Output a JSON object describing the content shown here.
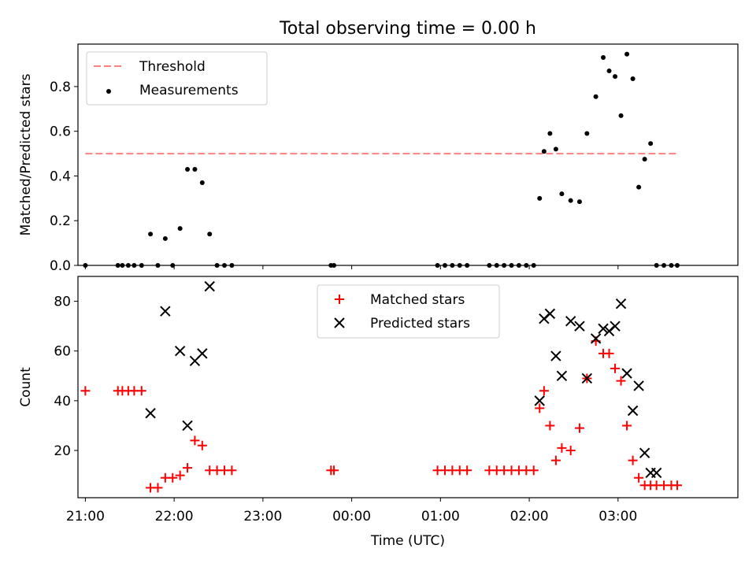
{
  "figure": {
    "title": "Total observing time = 0.00 h"
  },
  "chart_data": [
    {
      "type": "scatter",
      "panel": "top",
      "title": "Total observing time = 0.00 h",
      "xlabel": "",
      "ylabel": "Matched/Predicted stars",
      "ylim": [
        0,
        0.99
      ],
      "xlim": [
        "20:55",
        "04:21"
      ],
      "y_ticks": [
        "0.0",
        "0.2",
        "0.4",
        "0.6",
        "0.8"
      ],
      "x_ticks": [
        "21:00",
        "22:00",
        "23:00",
        "00:00",
        "01:00",
        "02:00",
        "03:00"
      ],
      "legend_position": "upper-left",
      "series": [
        {
          "name": "Threshold",
          "kind": "line",
          "style": "dashed",
          "color": "#ff8080",
          "x": [
            "21:00",
            "03:40"
          ],
          "y": [
            0.5,
            0.5
          ]
        },
        {
          "name": "Measurements",
          "kind": "scatter",
          "marker": "dot",
          "color": "#000000",
          "x": [
            "21:00",
            "21:22",
            "21:25",
            "21:29",
            "21:33",
            "21:38",
            "21:44",
            "21:49",
            "21:54",
            "21:59",
            "22:04",
            "22:09",
            "22:14",
            "22:19",
            "22:24",
            "22:29",
            "22:34",
            "22:39",
            "23:46",
            "23:48",
            "00:58",
            "01:03",
            "01:08",
            "01:13",
            "01:18",
            "01:33",
            "01:38",
            "01:43",
            "01:48",
            "01:53",
            "01:58",
            "02:03",
            "02:07",
            "02:10",
            "02:14",
            "02:18",
            "02:22",
            "02:28",
            "02:34",
            "02:39",
            "02:45",
            "02:50",
            "02:54",
            "02:58",
            "03:02",
            "03:06",
            "03:10",
            "03:14",
            "03:18",
            "03:22",
            "03:26",
            "03:31",
            "03:36",
            "03:40"
          ],
          "y": [
            0.0,
            0.0,
            0.0,
            0.0,
            0.0,
            0.0,
            0.14,
            0.0,
            0.12,
            0.0,
            0.165,
            0.43,
            0.43,
            0.37,
            0.14,
            0.0,
            0.0,
            0.0,
            0.0,
            0.0,
            0.0,
            0.0,
            0.0,
            0.0,
            0.0,
            0.0,
            0.0,
            0.0,
            0.0,
            0.0,
            0.0,
            0.0,
            0.3,
            0.51,
            0.59,
            0.52,
            0.32,
            0.29,
            0.285,
            0.59,
            0.755,
            0.93,
            0.87,
            0.845,
            0.67,
            0.945,
            0.835,
            0.35,
            0.475,
            0.545,
            0.0,
            0.0,
            0.0,
            0.0
          ]
        }
      ]
    },
    {
      "type": "scatter",
      "panel": "bottom",
      "title": "",
      "xlabel": "Time (UTC)",
      "ylabel": "Count",
      "ylim": [
        1,
        90
      ],
      "xlim": [
        "20:55",
        "04:21"
      ],
      "y_ticks": [
        "20",
        "40",
        "60",
        "80"
      ],
      "x_ticks": [
        "21:00",
        "22:00",
        "23:00",
        "00:00",
        "01:00",
        "02:00",
        "03:00"
      ],
      "legend_position": "upper-center",
      "series": [
        {
          "name": "Matched stars",
          "kind": "scatter",
          "marker": "plus",
          "color": "#ff0000",
          "x": [
            "21:00",
            "21:22",
            "21:25",
            "21:29",
            "21:33",
            "21:38",
            "21:44",
            "21:49",
            "21:54",
            "21:59",
            "22:04",
            "22:09",
            "22:14",
            "22:19",
            "22:24",
            "22:29",
            "22:34",
            "22:39",
            "23:46",
            "23:48",
            "00:58",
            "01:03",
            "01:08",
            "01:13",
            "01:18",
            "01:33",
            "01:38",
            "01:43",
            "01:48",
            "01:53",
            "01:58",
            "02:03",
            "02:07",
            "02:10",
            "02:14",
            "02:18",
            "02:22",
            "02:28",
            "02:34",
            "02:39",
            "02:45",
            "02:50",
            "02:54",
            "02:58",
            "03:02",
            "03:06",
            "03:10",
            "03:14",
            "03:18",
            "03:22",
            "03:26",
            "03:31",
            "03:36",
            "03:40"
          ],
          "y": [
            44,
            44,
            44,
            44,
            44,
            44,
            5,
            5,
            9,
            9,
            10,
            13,
            24,
            22,
            12,
            12,
            12,
            12,
            12,
            12,
            12,
            12,
            12,
            12,
            12,
            12,
            12,
            12,
            12,
            12,
            12,
            12,
            37,
            44,
            30,
            16,
            21,
            20,
            29,
            49,
            64,
            59,
            59,
            53,
            48,
            30,
            16,
            9,
            6,
            6,
            6,
            6,
            6,
            6
          ]
        },
        {
          "name": "Predicted stars",
          "kind": "scatter",
          "marker": "x",
          "color": "#000000",
          "x": [
            "21:44",
            "21:54",
            "22:04",
            "22:09",
            "22:14",
            "22:19",
            "22:24",
            "02:07",
            "02:10",
            "02:14",
            "02:18",
            "02:22",
            "02:28",
            "02:34",
            "02:39",
            "02:45",
            "02:50",
            "02:54",
            "02:58",
            "03:02",
            "03:06",
            "03:10",
            "03:14",
            "03:18",
            "03:22",
            "03:26"
          ],
          "y": [
            35,
            76,
            60,
            30,
            56,
            59,
            86,
            40,
            73,
            75,
            58,
            50,
            72,
            70,
            49,
            65,
            69,
            68,
            70,
            79,
            51,
            36,
            46,
            19,
            11,
            11
          ]
        }
      ]
    }
  ]
}
